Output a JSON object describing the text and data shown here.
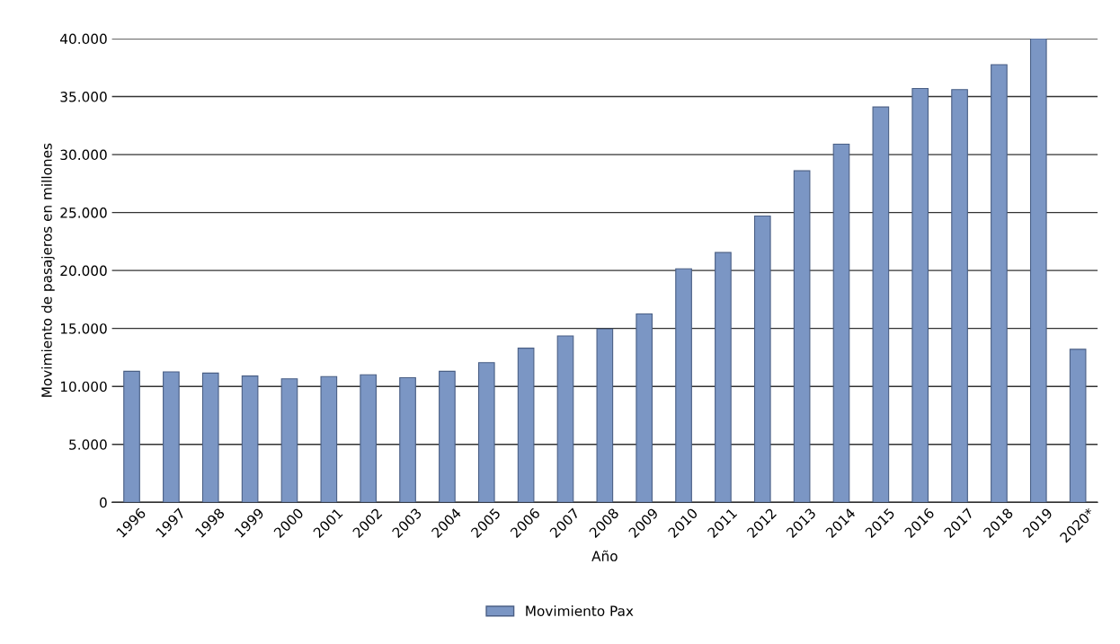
{
  "chart_data": {
    "type": "bar",
    "xlabel": "Año",
    "ylabel": "Movimiento de pasajeros en millones",
    "categories": [
      "1996",
      "1997",
      "1998",
      "1999",
      "2000",
      "2001",
      "2002",
      "2003",
      "2004",
      "2005",
      "2006",
      "2007",
      "2008",
      "2009",
      "2010",
      "2011",
      "2012",
      "2013",
      "2014",
      "2015",
      "2016",
      "2017",
      "2018",
      "2019",
      "2020*"
    ],
    "series": [
      {
        "name": "Movimiento Pax",
        "color": "#7b96c4",
        "values": [
          11300,
          11250,
          11150,
          10900,
          10650,
          10850,
          11000,
          10750,
          11300,
          12050,
          13300,
          14350,
          14950,
          16250,
          20150,
          21550,
          24700,
          28600,
          30900,
          34100,
          35700,
          35600,
          37750,
          40000,
          13200
        ]
      }
    ],
    "ylim": [
      0,
      40000
    ],
    "yticks": [
      {
        "value": 0,
        "label": "0"
      },
      {
        "value": 5000,
        "label": "5.000"
      },
      {
        "value": 10000,
        "label": "10.000"
      },
      {
        "value": 15000,
        "label": "15.000"
      },
      {
        "value": 20000,
        "label": "20.000"
      },
      {
        "value": 25000,
        "label": "25.000"
      },
      {
        "value": 30000,
        "label": "30.000"
      },
      {
        "value": 35000,
        "label": "35.000"
      },
      {
        "value": 40000,
        "label": "40.000"
      }
    ],
    "grid": "y",
    "legend": "bottom"
  }
}
